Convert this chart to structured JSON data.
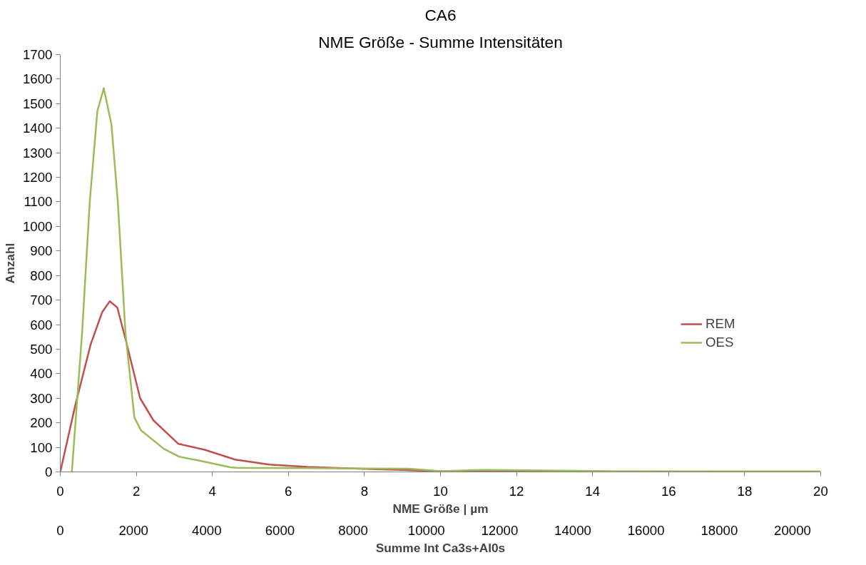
{
  "chart_data": {
    "type": "line",
    "title": "CA6",
    "subtitle": "NME Größe - Summe Intensitäten",
    "xlabel": "NME Größe | µm",
    "x2label": "Summe Int Ca3s+Al0s",
    "ylabel": "Anzahl",
    "xlim": [
      0,
      20
    ],
    "xticks": [
      0,
      2,
      4,
      6,
      8,
      10,
      12,
      14,
      16,
      18,
      20
    ],
    "x2lim": [
      0,
      20770
    ],
    "x2ticks": [
      0,
      2000,
      4000,
      6000,
      8000,
      10000,
      12000,
      14000,
      16000,
      18000,
      20000
    ],
    "ylim": [
      0,
      1700
    ],
    "yticks": [
      0,
      100,
      200,
      300,
      400,
      500,
      600,
      700,
      800,
      900,
      1000,
      1100,
      1200,
      1300,
      1400,
      1500,
      1600,
      1700
    ],
    "grid": false,
    "legend": "right",
    "marker": "none",
    "line_style": "solid",
    "series": [
      {
        "name": "REM",
        "color": "#c0504d",
        "x": [
          0,
          0.4,
          0.8,
          1.1,
          1.3,
          1.5,
          1.75,
          2.1,
          2.45,
          3.1,
          3.8,
          4.6,
          5.5,
          6.5,
          8,
          9,
          10,
          12,
          14
        ],
        "values": [
          0,
          275,
          520,
          650,
          695,
          670,
          520,
          300,
          210,
          115,
          90,
          50,
          30,
          20,
          12,
          8,
          3,
          2,
          2
        ]
      },
      {
        "name": "OES",
        "color": "#9bbb59",
        "axis": "x2",
        "x": [
          316,
          595,
          804,
          1012,
          1188,
          1397,
          1573,
          1781,
          2024,
          2200,
          2828,
          3247,
          3806,
          4644,
          4810,
          6800,
          9515,
          10400,
          11500,
          13120,
          15000,
          18000,
          20770
        ],
        "values": [
          0,
          565,
          1097,
          1469,
          1563,
          1416,
          1097,
          565,
          222,
          170,
          94,
          62,
          46,
          19,
          17,
          15,
          13,
          3,
          8,
          6,
          3,
          2,
          2
        ]
      }
    ]
  }
}
